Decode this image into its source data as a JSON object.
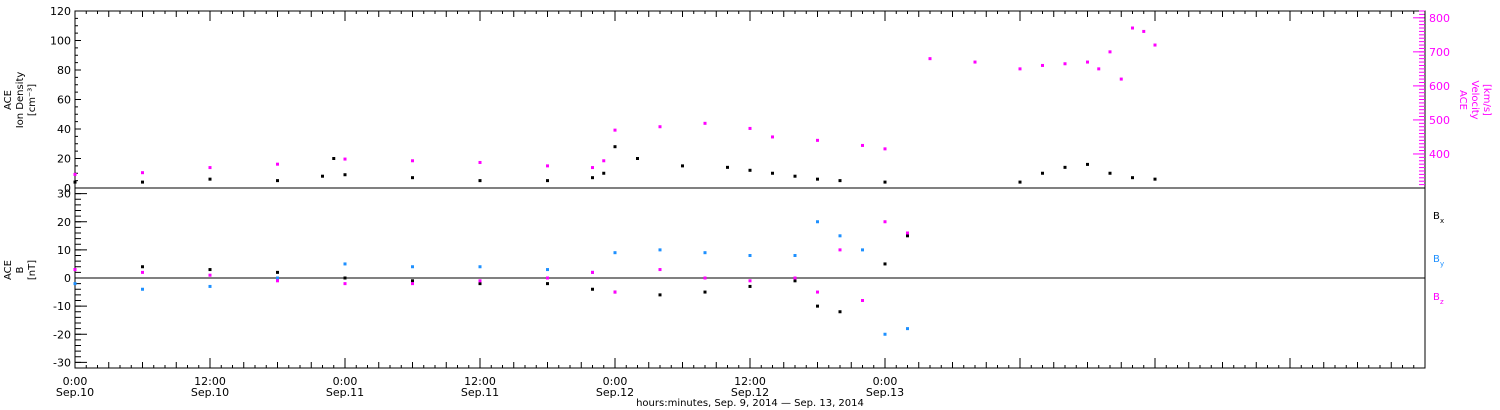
{
  "chart_data": [
    {
      "type": "scatter",
      "panel": "ion-density-velocity",
      "left_ylabel": [
        "ACE",
        "Ion Density",
        "[cm⁻³]"
      ],
      "right_ylabel": [
        "ACE",
        "Velocity",
        "[km/s]"
      ],
      "ylim": [
        0,
        120
      ],
      "yticks": [
        "0",
        "20",
        "40",
        "60",
        "80",
        "100",
        "120"
      ],
      "y2lim": [
        300,
        820
      ],
      "y2ticks": [
        "400",
        "500",
        "600",
        "700",
        "800"
      ],
      "colors": {
        "density": "#000000",
        "velocity": "#ff00ff"
      },
      "series": [
        {
          "name": "",
          "axis": "left",
          "color": "#000000",
          "x_hours": [
            0,
            6,
            12,
            18,
            22,
            23,
            24,
            30,
            36,
            42,
            46,
            47,
            48,
            50,
            54,
            58,
            60,
            62,
            64,
            66,
            68,
            72,
            84,
            86,
            88,
            90,
            92,
            94,
            96
          ],
          "y": [
            4,
            4,
            6,
            5,
            8,
            20,
            9,
            7,
            5,
            5,
            7,
            10,
            28,
            20,
            15,
            14,
            12,
            10,
            8,
            6,
            5,
            4,
            4,
            10,
            14,
            16,
            10,
            7,
            6
          ]
        },
        {
          "name": "",
          "axis": "right",
          "color": "#ff00ff",
          "x_hours": [
            0,
            6,
            12,
            18,
            24,
            30,
            36,
            42,
            46,
            47,
            48,
            52,
            56,
            60,
            62,
            66,
            70,
            72,
            76,
            80,
            84,
            86,
            88,
            90,
            91,
            92,
            93,
            94,
            95,
            96
          ],
          "y": [
            340,
            345,
            360,
            370,
            385,
            380,
            375,
            365,
            360,
            380,
            470,
            480,
            490,
            475,
            450,
            440,
            425,
            415,
            680,
            670,
            650,
            660,
            665,
            670,
            650,
            700,
            620,
            770,
            760,
            720
          ]
        }
      ]
    },
    {
      "type": "scatter",
      "panel": "magnetic-field",
      "left_ylabel": [
        "ACE",
        "B",
        "[nT]"
      ],
      "ylim": [
        -32,
        32
      ],
      "yticks": [
        "-30",
        "-20",
        "-10",
        "0",
        "10",
        "20",
        "30"
      ],
      "xlim_hours": [
        0,
        120
      ],
      "xticks": [
        {
          "h": 0,
          "top": "0:00",
          "bottom": "Sep.10"
        },
        {
          "h": 12,
          "top": "12:00",
          "bottom": "Sep.10"
        },
        {
          "h": 24,
          "top": "0:00",
          "bottom": "Sep.11"
        },
        {
          "h": 36,
          "top": "12:00",
          "bottom": "Sep.11"
        },
        {
          "h": 48,
          "top": "0:00",
          "bottom": "Sep.12"
        },
        {
          "h": 60,
          "top": "12:00",
          "bottom": "Sep.12"
        },
        {
          "h": 72,
          "top": "0:00",
          "bottom": "Sep.13"
        }
      ],
      "xlabel": "hours:minutes, Sep.  9, 2014 — Sep. 13, 2014",
      "series": [
        {
          "name": "Bx",
          "label_main": "B",
          "label_sub": "x",
          "color": "#000000",
          "x_hours": [
            0,
            6,
            12,
            18,
            24,
            30,
            36,
            42,
            46,
            48,
            52,
            56,
            60,
            64,
            66,
            68,
            70,
            72,
            74
          ],
          "y": [
            3,
            4,
            3,
            2,
            0,
            -1,
            -2,
            -2,
            -4,
            -5,
            -6,
            -5,
            -3,
            -1,
            -10,
            -12,
            -8,
            5,
            15
          ]
        },
        {
          "name": "By",
          "label_main": "B",
          "label_sub": "y",
          "color": "#1e90ff",
          "x_hours": [
            0,
            6,
            12,
            18,
            24,
            30,
            36,
            42,
            46,
            48,
            52,
            56,
            60,
            64,
            66,
            68,
            70,
            72,
            74
          ],
          "y": [
            -2,
            -4,
            -3,
            0,
            5,
            4,
            4,
            3,
            2,
            9,
            10,
            9,
            8,
            8,
            20,
            15,
            10,
            -20,
            -18
          ]
        },
        {
          "name": "Bz",
          "label_main": "B",
          "label_sub": "z",
          "color": "#ff00ff",
          "x_hours": [
            0,
            6,
            12,
            18,
            24,
            30,
            36,
            42,
            46,
            48,
            52,
            56,
            60,
            64,
            66,
            68,
            70,
            72,
            74
          ],
          "y": [
            3,
            2,
            1,
            -1,
            -2,
            -2,
            -1,
            0,
            2,
            -5,
            3,
            0,
            -1,
            0,
            -5,
            10,
            -8,
            20,
            16
          ]
        }
      ]
    }
  ]
}
